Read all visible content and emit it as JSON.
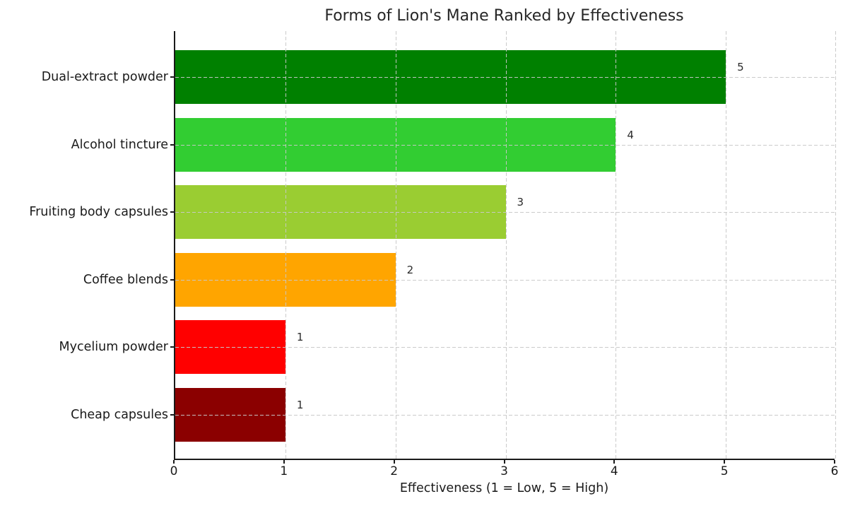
{
  "chart_data": {
    "type": "bar",
    "orientation": "horizontal",
    "title": "Forms of Lion's Mane Ranked by Effectiveness",
    "xlabel": "Effectiveness (1 = Low, 5 = High)",
    "ylabel": "",
    "categories": [
      "Dual-extract powder",
      "Alcohol tincture",
      "Fruiting body capsules",
      "Coffee blends",
      "Mycelium powder",
      "Cheap capsules"
    ],
    "values": [
      5,
      4,
      3,
      2,
      1,
      1
    ],
    "value_labels": [
      "5",
      "4",
      "3",
      "2",
      "1",
      "1"
    ],
    "bar_colors": [
      "#008000",
      "#32CD32",
      "#9ACD32",
      "#FFA500",
      "#FF0000",
      "#8B0000"
    ],
    "xlim": [
      0,
      6
    ],
    "x_ticks": [
      "0",
      "1",
      "2",
      "3",
      "4",
      "5",
      "6"
    ],
    "grid": "dashed",
    "grid_color": "#c8c8c8",
    "legend": "none",
    "background_color": "#ffffff"
  }
}
